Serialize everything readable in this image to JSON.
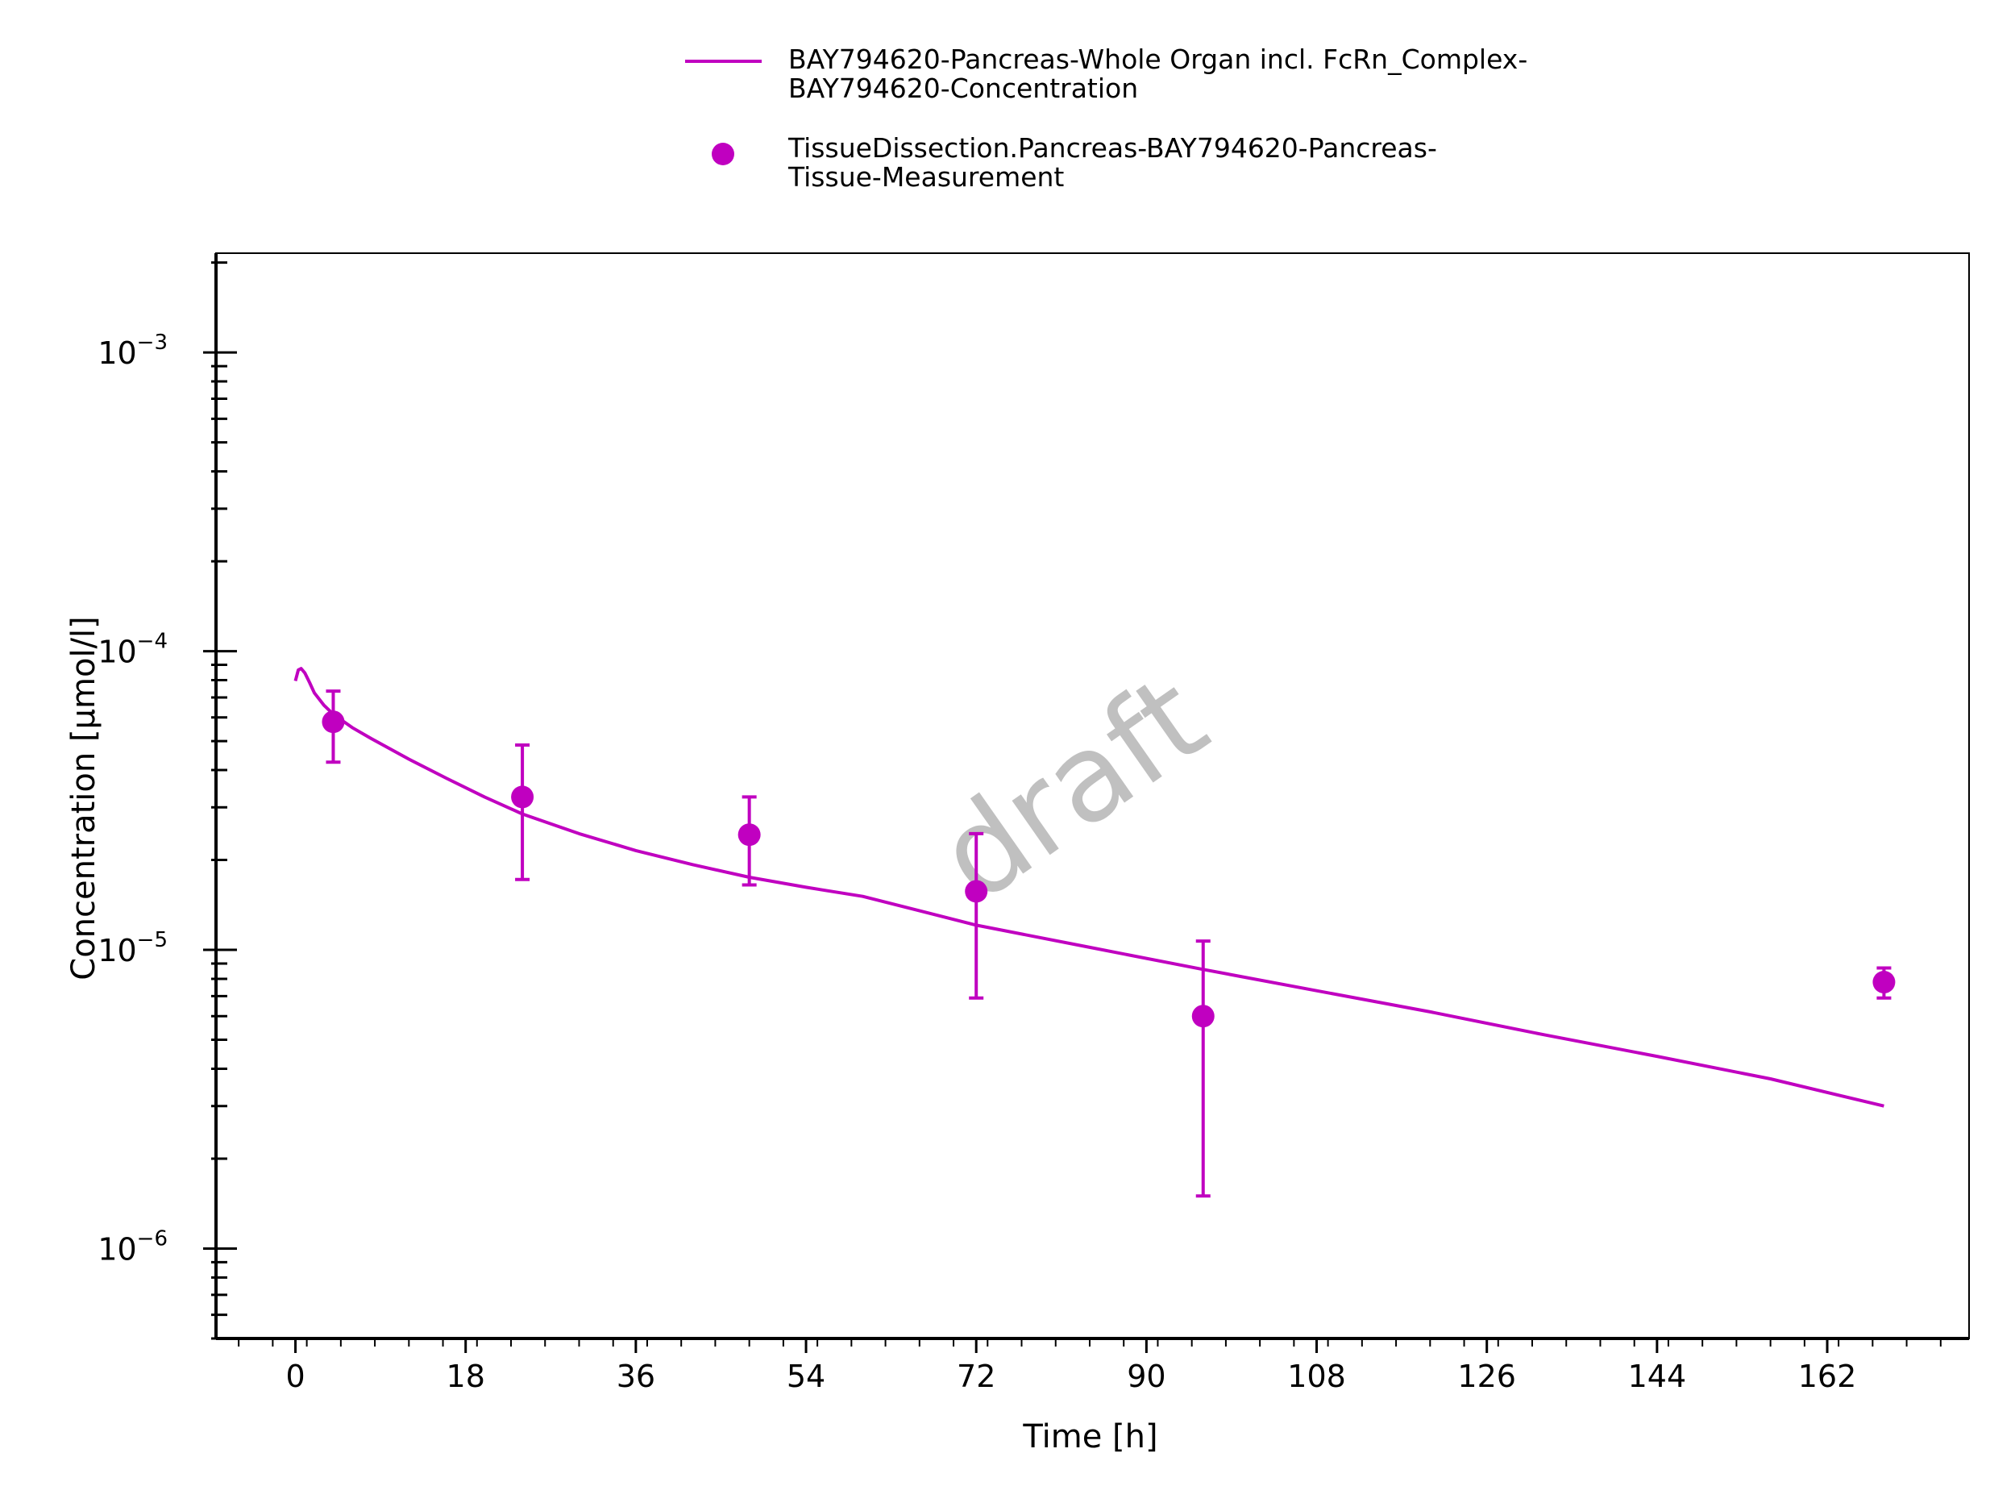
{
  "chart_data": {
    "type": "line",
    "xlabel": "Time [h]",
    "ylabel": "Concentration [µmol/l]",
    "xlim": [
      -8.4,
      177
    ],
    "ylim": [
      5e-07,
      0.00215
    ],
    "y_scale": "log",
    "grid": false,
    "x_ticks": [
      0,
      18,
      36,
      54,
      72,
      90,
      108,
      126,
      144,
      162
    ],
    "x_tick_labels": [
      "0",
      "18",
      "36",
      "54",
      "72",
      "90",
      "108",
      "126",
      "144",
      "162"
    ],
    "y_ticks": [
      1e-06,
      1e-05,
      0.0001,
      0.001
    ],
    "y_tick_labels": [
      {
        "base": "10",
        "exp": "−6"
      },
      {
        "base": "10",
        "exp": "−5"
      },
      {
        "base": "10",
        "exp": "−4"
      },
      {
        "base": "10",
        "exp": "−3"
      }
    ],
    "legend_position": "top",
    "watermark": "draft",
    "series": [
      {
        "name_lines": [
          "BAY794620-Pancreas-Whole Organ incl. FcRn_Complex-",
          "BAY794620-Concentration"
        ],
        "kind": "line",
        "color": "#c000c0",
        "x": [
          0,
          0.3,
          0.6,
          1,
          1.5,
          2,
          3,
          4,
          6,
          8,
          12,
          16,
          20,
          24,
          30,
          36,
          42,
          48,
          54,
          60,
          72,
          84,
          96,
          108,
          120,
          132,
          144,
          156,
          168
        ],
        "y": [
          7.95e-05,
          8.65e-05,
          8.75e-05,
          8.45e-05,
          7.85e-05,
          7.25e-05,
          6.6e-05,
          6.15e-05,
          5.55e-05,
          5.1e-05,
          4.35e-05,
          3.75e-05,
          3.25e-05,
          2.85e-05,
          2.45e-05,
          2.15e-05,
          1.93e-05,
          1.75e-05,
          1.62e-05,
          1.51e-05,
          1.21e-05,
          1.02e-05,
          8.6e-06,
          7.3e-06,
          6.2e-06,
          5.2e-06,
          4.4e-06,
          3.7e-06,
          3e-06
        ]
      },
      {
        "name_lines": [
          "TissueDissection.Pancreas-BAY794620-Pancreas-",
          "Tissue-Measurement"
        ],
        "kind": "scatter",
        "color": "#c000c0",
        "x": [
          4,
          24,
          48,
          72,
          96,
          168
        ],
        "y": [
          5.8e-05,
          3.25e-05,
          2.43e-05,
          1.57e-05,
          6e-06,
          7.8e-06
        ],
        "err_low": [
          4.25e-05,
          1.72e-05,
          1.65e-05,
          6.9e-06,
          1.5e-06,
          6.9e-06
        ],
        "err_high": [
          7.35e-05,
          4.85e-05,
          3.25e-05,
          2.45e-05,
          1.07e-05,
          8.7e-06
        ]
      }
    ]
  }
}
